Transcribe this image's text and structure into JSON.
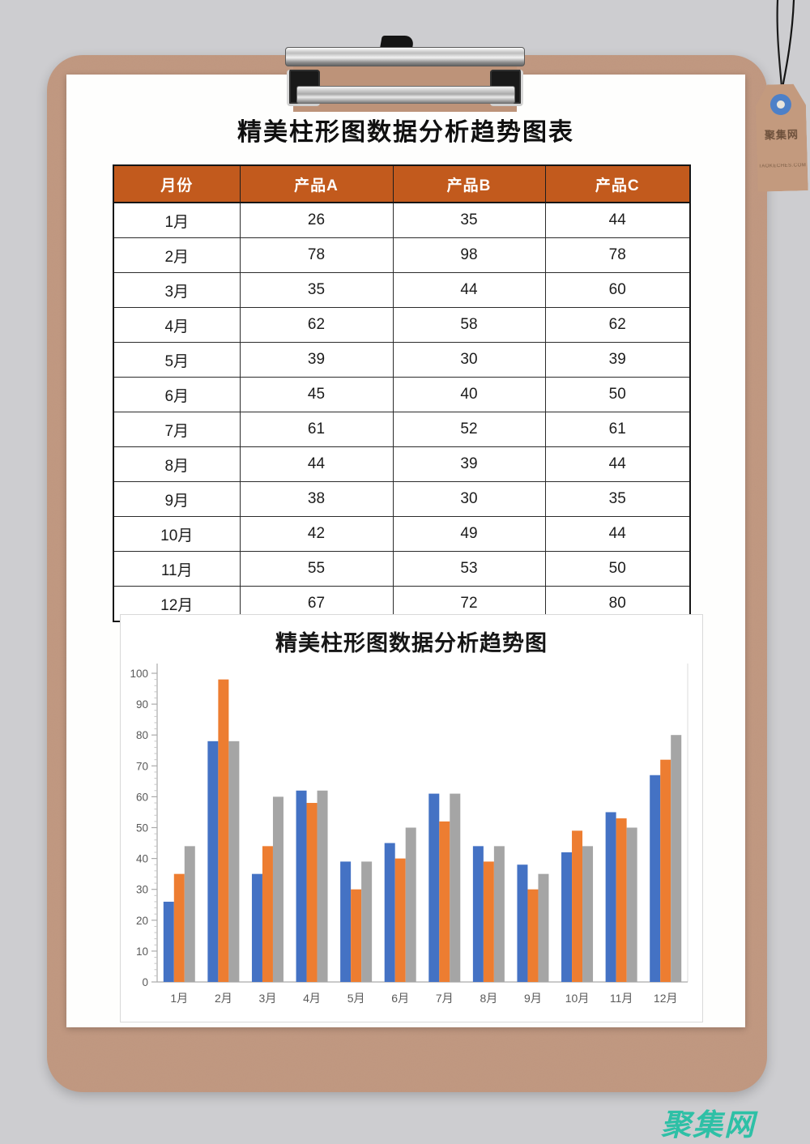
{
  "page": {
    "title": "精美柱形图数据分析趋势图表"
  },
  "table": {
    "header_bg": "#C25A1D",
    "headers": [
      "月份",
      "产品A",
      "产品B",
      "产品C"
    ],
    "rows": [
      [
        "1月",
        26,
        35,
        44
      ],
      [
        "2月",
        78,
        98,
        78
      ],
      [
        "3月",
        35,
        44,
        60
      ],
      [
        "4月",
        62,
        58,
        62
      ],
      [
        "5月",
        39,
        30,
        39
      ],
      [
        "6月",
        45,
        40,
        50
      ],
      [
        "7月",
        61,
        52,
        61
      ],
      [
        "8月",
        44,
        39,
        44
      ],
      [
        "9月",
        38,
        30,
        35
      ],
      [
        "10月",
        42,
        49,
        44
      ],
      [
        "11月",
        55,
        53,
        50
      ],
      [
        "12月",
        67,
        72,
        80
      ]
    ]
  },
  "chart_data": {
    "type": "bar",
    "title": "精美柱形图数据分析趋势图",
    "categories": [
      "1月",
      "2月",
      "3月",
      "4月",
      "5月",
      "6月",
      "7月",
      "8月",
      "9月",
      "10月",
      "11月",
      "12月"
    ],
    "series": [
      {
        "name": "产品A",
        "color": "#4472C4",
        "values": [
          26,
          78,
          35,
          62,
          39,
          45,
          61,
          44,
          38,
          42,
          55,
          67
        ]
      },
      {
        "name": "产品B",
        "color": "#ED7D31",
        "values": [
          35,
          98,
          44,
          58,
          30,
          40,
          52,
          39,
          30,
          49,
          53,
          72
        ]
      },
      {
        "name": "产品C",
        "color": "#A5A5A5",
        "values": [
          44,
          78,
          60,
          62,
          39,
          50,
          61,
          44,
          35,
          44,
          50,
          80
        ]
      }
    ],
    "xlabel": "",
    "ylabel": "",
    "ylim": [
      0,
      100
    ],
    "ytick_step": 10,
    "ytick_minor_step": 2,
    "grid": false,
    "legend": "none",
    "axis_text_color": "#595959",
    "axis_line_color": "#ABABAB"
  },
  "tag": {
    "logo_text": "聚集网",
    "subtext": "TAOKECHES.COM"
  },
  "watermark": {
    "text": "聚集网",
    "color": "#2EC0A6"
  },
  "colors": {
    "background": "#CDCDD0",
    "board": "#C0977F",
    "paper": "#FEFEFD",
    "table_header": "#C25A1D",
    "bar_blue": "#4472C4",
    "bar_orange": "#ED7D31",
    "bar_gray": "#A5A5A5"
  }
}
